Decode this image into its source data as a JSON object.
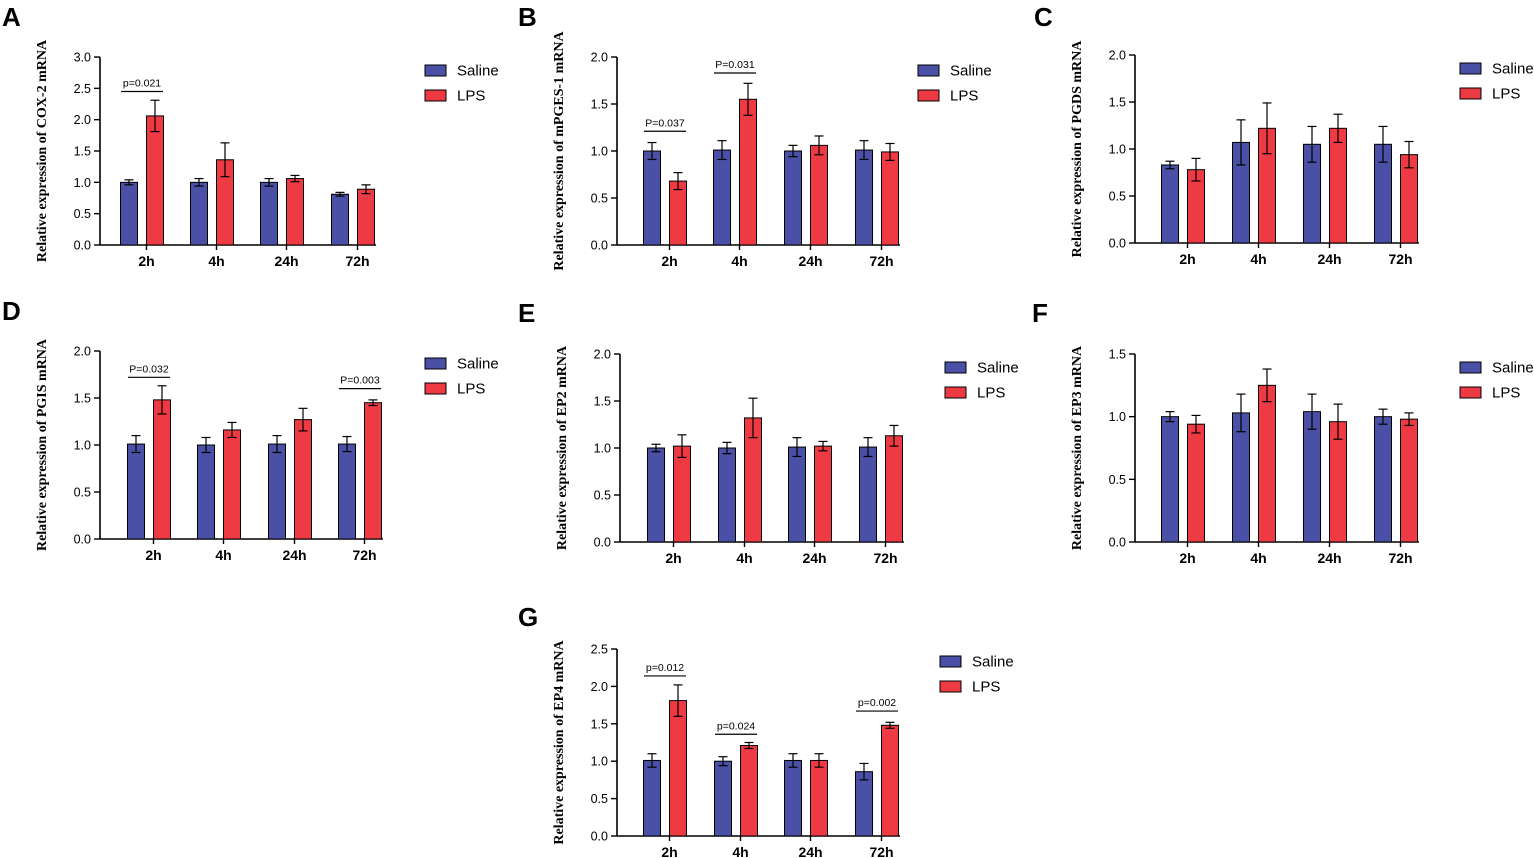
{
  "colors": {
    "saline": "#4a50a6",
    "lps": "#ee3a43",
    "axis": "#000000"
  },
  "chart_data": [
    {
      "panel": "A",
      "type": "bar",
      "ylabel": "Relative expression of  COX-2 mRNA",
      "categories": [
        "2h",
        "4h",
        "24h",
        "72h"
      ],
      "ylim": [
        0,
        3.0
      ],
      "yticks": [
        "0.0",
        "0.5",
        "1.0",
        "1.5",
        "2.0",
        "2.5",
        "3.0"
      ],
      "legend": [
        "Saline",
        "LPS"
      ],
      "series": [
        {
          "name": "Saline",
          "values": [
            1.0,
            1.0,
            1.0,
            0.81
          ],
          "errors": [
            0.04,
            0.06,
            0.06,
            0.03
          ]
        },
        {
          "name": "LPS",
          "values": [
            2.06,
            1.36,
            1.06,
            0.89
          ],
          "errors": [
            0.25,
            0.27,
            0.05,
            0.07
          ]
        }
      ],
      "annotations": [
        {
          "text": "p=0.021",
          "category": 0,
          "y": 2.45
        }
      ]
    },
    {
      "panel": "B",
      "type": "bar",
      "ylabel": "Relative expression of mPGES-1 mRNA",
      "categories": [
        "2h",
        "4h",
        "24h",
        "72h"
      ],
      "ylim": [
        0,
        2.0
      ],
      "yticks": [
        "0.0",
        "0.5",
        "1.0",
        "1.5",
        "2.0"
      ],
      "legend": [
        "Saline",
        "LPS"
      ],
      "series": [
        {
          "name": "Saline",
          "values": [
            1.0,
            1.01,
            1.0,
            1.01
          ],
          "errors": [
            0.09,
            0.1,
            0.06,
            0.1
          ]
        },
        {
          "name": "LPS",
          "values": [
            0.68,
            1.55,
            1.06,
            0.99
          ],
          "errors": [
            0.09,
            0.17,
            0.1,
            0.09
          ]
        }
      ],
      "annotations": [
        {
          "text": "P=0.037",
          "category": 0,
          "y": 1.21
        },
        {
          "text": "P=0.031",
          "category": 1,
          "y": 1.83
        }
      ]
    },
    {
      "panel": "C",
      "type": "bar",
      "ylabel": "Relative expression of PGDS mRNA",
      "categories": [
        "2h",
        "4h",
        "24h",
        "72h"
      ],
      "ylim": [
        0,
        2.0
      ],
      "yticks": [
        "0.0",
        "0.5",
        "1.0",
        "1.5",
        "2.0"
      ],
      "legend": [
        "Saline",
        "LPS"
      ],
      "series": [
        {
          "name": "Saline",
          "values": [
            0.83,
            1.07,
            1.05,
            1.05
          ],
          "errors": [
            0.04,
            0.24,
            0.19,
            0.19
          ]
        },
        {
          "name": "LPS",
          "values": [
            0.78,
            1.22,
            1.22,
            0.94
          ],
          "errors": [
            0.12,
            0.27,
            0.15,
            0.14
          ]
        }
      ],
      "annotations": []
    },
    {
      "panel": "D",
      "type": "bar",
      "ylabel": "Relative expression of  PGIS mRNA",
      "categories": [
        "2h",
        "4h",
        "24h",
        "72h"
      ],
      "ylim": [
        0,
        2.0
      ],
      "yticks": [
        "0.0",
        "0.5",
        "1.0",
        "1.5",
        "2.0"
      ],
      "legend": [
        "Saline",
        "LPS"
      ],
      "series": [
        {
          "name": "Saline",
          "values": [
            1.01,
            1.0,
            1.01,
            1.01
          ],
          "errors": [
            0.09,
            0.08,
            0.09,
            0.08
          ]
        },
        {
          "name": "LPS",
          "values": [
            1.48,
            1.16,
            1.27,
            1.45
          ],
          "errors": [
            0.15,
            0.08,
            0.12,
            0.03
          ]
        }
      ],
      "annotations": [
        {
          "text": "P=0.032",
          "category": 0,
          "y": 1.72
        },
        {
          "text": "P=0.003",
          "category": 3,
          "y": 1.6
        }
      ]
    },
    {
      "panel": "E",
      "type": "bar",
      "ylabel": "Relative expression of EP2 mRNA",
      "categories": [
        "2h",
        "4h",
        "24h",
        "72h"
      ],
      "ylim": [
        0,
        2.0
      ],
      "yticks": [
        "0.0",
        "0.5",
        "1.0",
        "1.5",
        "2.0"
      ],
      "legend": [
        "Saline",
        "LPS"
      ],
      "series": [
        {
          "name": "Saline",
          "values": [
            1.0,
            1.0,
            1.01,
            1.01
          ],
          "errors": [
            0.04,
            0.06,
            0.1,
            0.1
          ]
        },
        {
          "name": "LPS",
          "values": [
            1.02,
            1.32,
            1.02,
            1.13
          ],
          "errors": [
            0.12,
            0.21,
            0.05,
            0.11
          ]
        }
      ],
      "annotations": []
    },
    {
      "panel": "F",
      "type": "bar",
      "ylabel": "Relative expression of EP3 mRNA",
      "categories": [
        "2h",
        "4h",
        "24h",
        "72h"
      ],
      "ylim": [
        0,
        1.5
      ],
      "yticks": [
        "0.0",
        "0.5",
        "1.0",
        "1.5"
      ],
      "legend": [
        "Saline",
        "LPS"
      ],
      "series": [
        {
          "name": "Saline",
          "values": [
            1.0,
            1.03,
            1.04,
            1.0
          ],
          "errors": [
            0.04,
            0.15,
            0.14,
            0.06
          ]
        },
        {
          "name": "LPS",
          "values": [
            0.94,
            1.25,
            0.96,
            0.98
          ],
          "errors": [
            0.07,
            0.13,
            0.14,
            0.05
          ]
        }
      ],
      "annotations": []
    },
    {
      "panel": "G",
      "type": "bar",
      "ylabel": "Relative expression of EP4 mRNA",
      "categories": [
        "2h",
        "4h",
        "24h",
        "72h"
      ],
      "ylim": [
        0,
        2.5
      ],
      "yticks": [
        "0.0",
        "0.5",
        "1.0",
        "1.5",
        "2.0",
        "2.5"
      ],
      "legend": [
        "Saline",
        "LPS"
      ],
      "series": [
        {
          "name": "Saline",
          "values": [
            1.01,
            1.0,
            1.01,
            0.86
          ],
          "errors": [
            0.09,
            0.06,
            0.09,
            0.11
          ]
        },
        {
          "name": "LPS",
          "values": [
            1.81,
            1.21,
            1.01,
            1.48
          ],
          "errors": [
            0.21,
            0.04,
            0.09,
            0.04
          ]
        }
      ],
      "annotations": [
        {
          "text": "p=0.012",
          "category": 0,
          "y": 2.14
        },
        {
          "text": "p=0.024",
          "category": 1,
          "y": 1.36
        },
        {
          "text": "p=0.002",
          "category": 3,
          "y": 1.67
        }
      ]
    }
  ]
}
